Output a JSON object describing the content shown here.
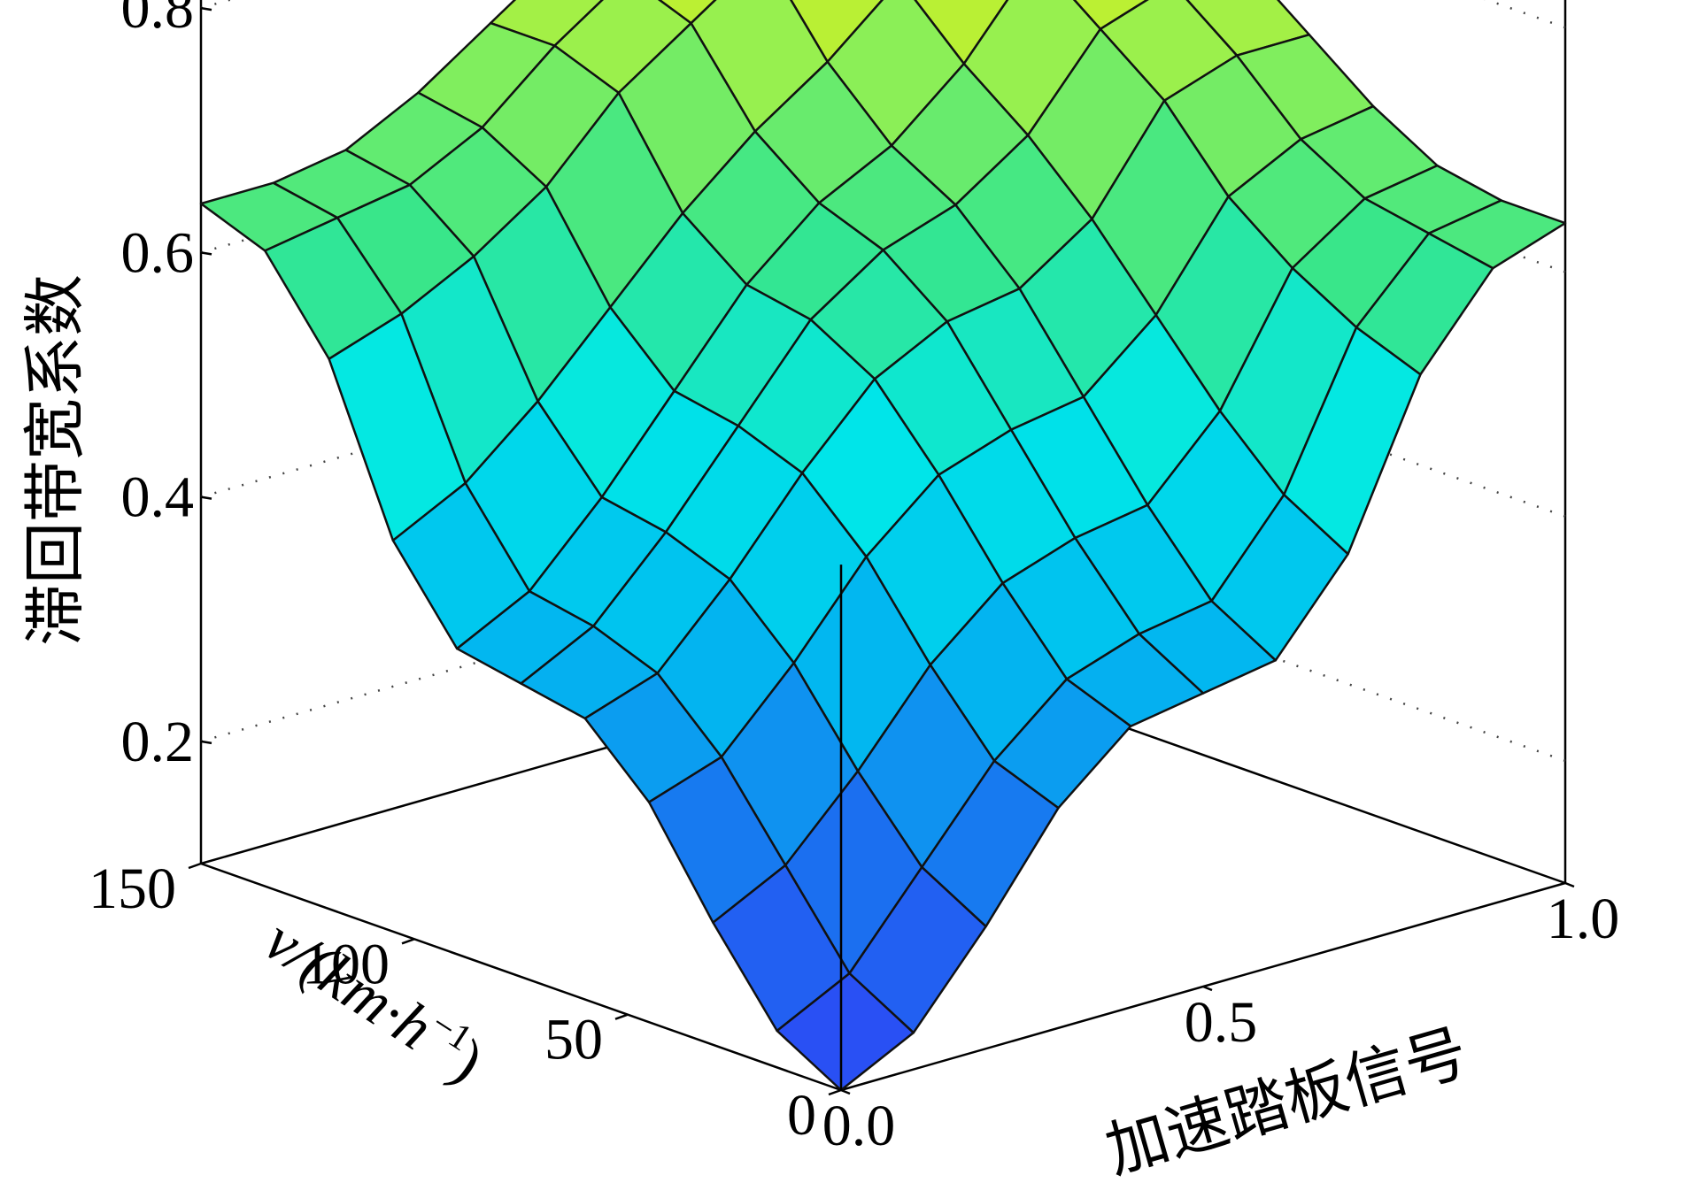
{
  "chart_data": {
    "type": "surface",
    "title": "",
    "xlabel": "加速踏板信号",
    "ylabel_text": "v/(km·h",
    "ylabel_sup": "−1",
    "ylabel_close": ")",
    "zlabel": "滞回带宽系数",
    "xlim": [
      0.0,
      1.0
    ],
    "ylim": [
      0,
      150
    ],
    "zlim": [
      0.1,
      0.9
    ],
    "x_ticks": [
      "0.0",
      "0.5",
      "1.0"
    ],
    "y_ticks": [
      "0",
      "50",
      "100",
      "150"
    ],
    "z_ticks": [
      "0.2",
      "0.4",
      "0.6",
      "0.8"
    ],
    "grid": true,
    "colormap": "parula",
    "surface": {
      "x": [
        0.0,
        0.1,
        0.2,
        0.3,
        0.4,
        0.5,
        0.6,
        0.7,
        0.8,
        0.9,
        1.0
      ],
      "y": [
        0,
        15,
        30,
        45,
        60,
        75,
        90,
        105,
        120,
        135,
        150
      ],
      "z": [
        [
          0.1,
          0.13,
          0.2,
          0.28,
          0.33,
          0.34,
          0.35,
          0.42,
          0.55,
          0.62,
          0.64
        ],
        [
          0.13,
          0.16,
          0.23,
          0.3,
          0.35,
          0.37,
          0.38,
          0.45,
          0.57,
          0.63,
          0.64
        ],
        [
          0.2,
          0.23,
          0.29,
          0.36,
          0.41,
          0.43,
          0.44,
          0.5,
          0.6,
          0.64,
          0.65
        ],
        [
          0.28,
          0.3,
          0.36,
          0.43,
          0.48,
          0.5,
          0.51,
          0.56,
          0.64,
          0.67,
          0.68
        ],
        [
          0.33,
          0.35,
          0.41,
          0.48,
          0.54,
          0.57,
          0.58,
          0.62,
          0.7,
          0.72,
          0.72
        ],
        [
          0.34,
          0.37,
          0.43,
          0.5,
          0.57,
          0.61,
          0.63,
          0.67,
          0.74,
          0.76,
          0.76
        ],
        [
          0.35,
          0.38,
          0.44,
          0.51,
          0.58,
          0.63,
          0.66,
          0.71,
          0.78,
          0.8,
          0.8
        ],
        [
          0.42,
          0.45,
          0.5,
          0.56,
          0.62,
          0.67,
          0.71,
          0.76,
          0.82,
          0.84,
          0.84
        ],
        [
          0.55,
          0.57,
          0.6,
          0.64,
          0.7,
          0.74,
          0.78,
          0.82,
          0.86,
          0.87,
          0.87
        ],
        [
          0.62,
          0.63,
          0.64,
          0.67,
          0.72,
          0.76,
          0.8,
          0.84,
          0.87,
          0.88,
          0.88
        ],
        [
          0.64,
          0.64,
          0.65,
          0.68,
          0.72,
          0.76,
          0.8,
          0.84,
          0.87,
          0.88,
          0.88
        ]
      ]
    }
  }
}
